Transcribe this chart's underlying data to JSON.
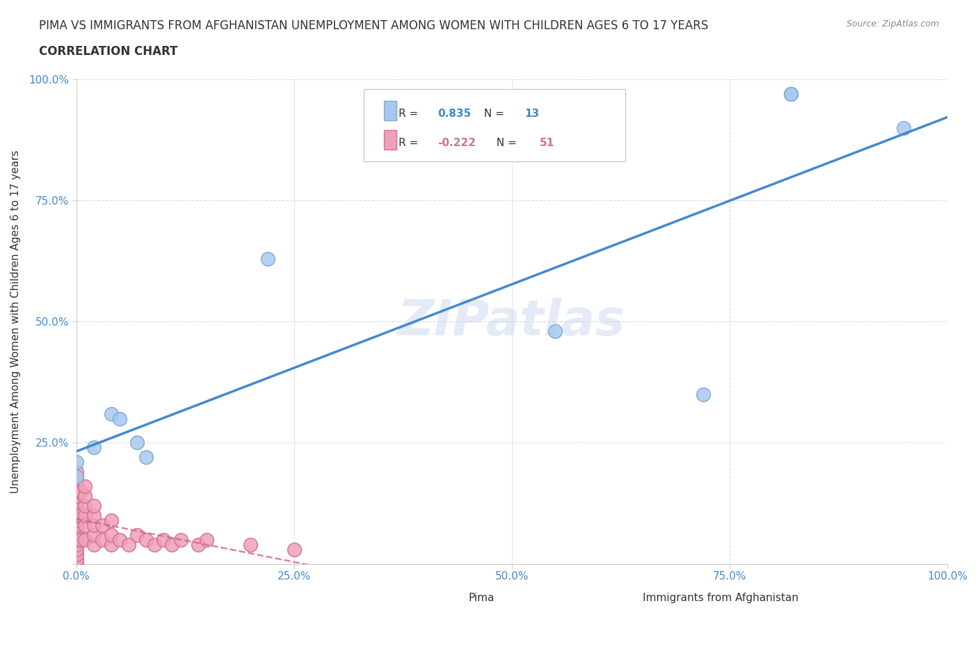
{
  "title_line1": "PIMA VS IMMIGRANTS FROM AFGHANISTAN UNEMPLOYMENT AMONG WOMEN WITH CHILDREN AGES 6 TO 17 YEARS",
  "title_line2": "CORRELATION CHART",
  "source": "Source: ZipAtlas.com",
  "xlabel": "",
  "ylabel": "Unemployment Among Women with Children Ages 6 to 17 years",
  "xlim": [
    0.0,
    1.0
  ],
  "ylim": [
    0.0,
    1.0
  ],
  "xticks": [
    0.0,
    0.25,
    0.5,
    0.75,
    1.0
  ],
  "yticks": [
    0.0,
    0.25,
    0.5,
    0.75,
    1.0
  ],
  "xtick_labels": [
    "0.0%",
    "25.0%",
    "50.0%",
    "75.0%",
    "100.0%"
  ],
  "ytick_labels": [
    "",
    "25.0%",
    "50.0%",
    "75.0%",
    "100.0%"
  ],
  "background_color": "#ffffff",
  "grid_color": "#cccccc",
  "watermark": "ZIPatlas",
  "pima_color": "#a8c8f0",
  "pima_edge_color": "#7aaad0",
  "afghanistan_color": "#f0a0b8",
  "afghanistan_edge_color": "#d07090",
  "pima_R": 0.835,
  "pima_N": 13,
  "afghanistan_R": -0.222,
  "afghanistan_N": 51,
  "pima_line_color": "#4488cc",
  "afghanistan_line_color": "#cc6688",
  "legend_label1": "Pima",
  "legend_label2": "Immigrants from Afghanistan",
  "pima_points_x": [
    0.0,
    0.0,
    0.02,
    0.04,
    0.05,
    0.07,
    0.08,
    0.22,
    0.55,
    0.72,
    0.82,
    0.82,
    0.95
  ],
  "pima_points_y": [
    0.18,
    0.21,
    0.24,
    0.31,
    0.3,
    0.25,
    0.22,
    0.63,
    0.48,
    0.35,
    0.97,
    0.97,
    0.9
  ],
  "afghanistan_points_x": [
    0.0,
    0.0,
    0.0,
    0.0,
    0.0,
    0.0,
    0.0,
    0.0,
    0.0,
    0.0,
    0.0,
    0.0,
    0.0,
    0.0,
    0.0,
    0.0,
    0.0,
    0.0,
    0.0,
    0.0,
    0.005,
    0.005,
    0.005,
    0.01,
    0.01,
    0.01,
    0.01,
    0.01,
    0.01,
    0.02,
    0.02,
    0.02,
    0.02,
    0.02,
    0.03,
    0.03,
    0.04,
    0.04,
    0.04,
    0.05,
    0.06,
    0.07,
    0.08,
    0.09,
    0.1,
    0.11,
    0.12,
    0.14,
    0.15,
    0.2,
    0.25
  ],
  "afghanistan_points_y": [
    0.0,
    0.01,
    0.02,
    0.03,
    0.04,
    0.05,
    0.06,
    0.07,
    0.08,
    0.09,
    0.1,
    0.11,
    0.12,
    0.13,
    0.14,
    0.15,
    0.16,
    0.17,
    0.18,
    0.19,
    0.05,
    0.1,
    0.15,
    0.05,
    0.08,
    0.1,
    0.12,
    0.14,
    0.16,
    0.04,
    0.06,
    0.08,
    0.1,
    0.12,
    0.05,
    0.08,
    0.04,
    0.06,
    0.09,
    0.05,
    0.04,
    0.06,
    0.05,
    0.04,
    0.05,
    0.04,
    0.05,
    0.04,
    0.05,
    0.04,
    0.03
  ]
}
